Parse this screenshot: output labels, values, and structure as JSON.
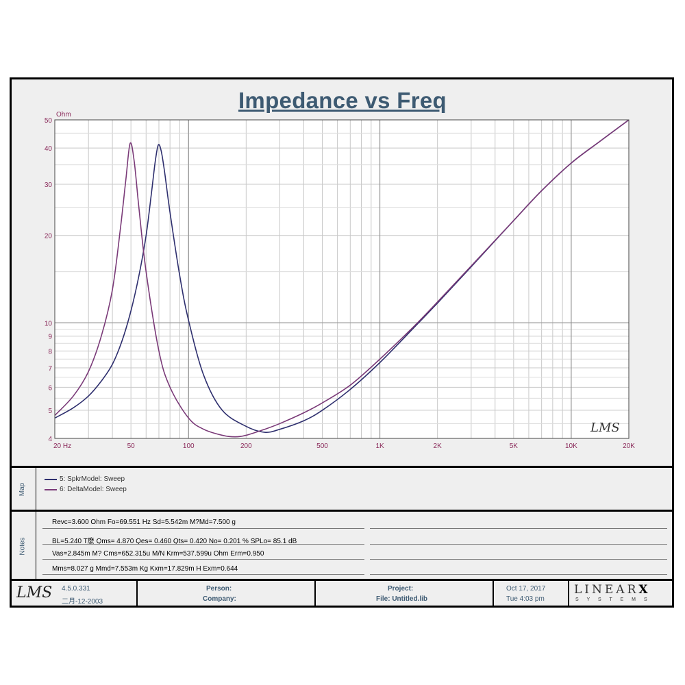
{
  "chart_data": {
    "type": "line",
    "title": "Impedance vs Freq",
    "ylabel": "Ohm",
    "xscale": "log",
    "yscale": "log",
    "xlim": [
      20,
      20000
    ],
    "ylim": [
      4,
      50
    ],
    "grid": true,
    "x_tick_labels": [
      "20 Hz",
      "50",
      "100",
      "200",
      "500",
      "1K",
      "2K",
      "5K",
      "10K",
      "20K"
    ],
    "x_tick_values": [
      20,
      50,
      100,
      200,
      500,
      1000,
      2000,
      5000,
      10000,
      20000
    ],
    "y_tick_labels": [
      "4",
      "5",
      "6",
      "7",
      "8",
      "9",
      "10",
      "20",
      "30",
      "40",
      "50"
    ],
    "y_tick_values": [
      4,
      5,
      6,
      7,
      8,
      9,
      10,
      20,
      30,
      40,
      50
    ],
    "series": [
      {
        "name": "5: SpkrModel: Sweep",
        "color": "#2e2f6e",
        "x": [
          20,
          25,
          30,
          35,
          40,
          45,
          50,
          55,
          60,
          64,
          67,
          69.5,
          72,
          75,
          80,
          90,
          100,
          120,
          150,
          200,
          250,
          300,
          400,
          500,
          700,
          1000,
          1500,
          2000,
          3000,
          5000,
          7000,
          10000,
          14000,
          20000
        ],
        "values": [
          4.7,
          5.1,
          5.6,
          6.3,
          7.2,
          8.7,
          11.0,
          14.5,
          20.0,
          28.0,
          36.0,
          41.0,
          39.0,
          33.0,
          24.0,
          14.5,
          10.2,
          6.6,
          5.0,
          4.4,
          4.2,
          4.3,
          4.6,
          5.0,
          5.9,
          7.3,
          9.6,
          11.7,
          15.6,
          22.5,
          28.5,
          35.5,
          42.0,
          50.0
        ]
      },
      {
        "name": "6: DeltaModel: Sweep",
        "color": "#7a3a78",
        "x": [
          20,
          25,
          30,
          35,
          40,
          44,
          47,
          49.5,
          52,
          55,
          60,
          70,
          80,
          100,
          120,
          150,
          175,
          200,
          250,
          300,
          400,
          500,
          700,
          1000,
          1500,
          2000,
          3000,
          5000,
          7000,
          10000,
          14000,
          20000
        ],
        "values": [
          4.8,
          5.6,
          6.8,
          9.0,
          13.0,
          21.0,
          31.0,
          41.5,
          36.0,
          25.0,
          15.0,
          8.0,
          6.0,
          4.7,
          4.3,
          4.1,
          4.05,
          4.1,
          4.3,
          4.5,
          4.9,
          5.3,
          6.1,
          7.5,
          9.7,
          11.8,
          15.7,
          22.5,
          28.5,
          35.5,
          42.0,
          50.0
        ]
      }
    ]
  },
  "watermark": "LMS",
  "map": {
    "label": "Map",
    "entries": [
      "5: SpkrModel: Sweep",
      "6: DeltaModel: Sweep"
    ]
  },
  "notes": {
    "label": "Notes",
    "lines": [
      "Revc=3.600 Ohm  Fo=69.551 Hz  Sd=5.542m M?Md=7.500 g",
      "BL=5.240 T麽  Qms= 4.870  Qes= 0.460  Qts= 0.420  No= 0.201 %  SPLo= 85.1 dB",
      "Vas=2.845m M?  Cms=652.315u M/N  Krm=537.599u Ohm  Erm=0.950",
      "Mms=8.027 g  Mmd=7.553m Kg  Kxm=17.829m H  Exm=0.644"
    ]
  },
  "footer": {
    "logo": "LMS",
    "version": "4.5.0.331",
    "date": "二月-12-2003",
    "person_label": "Person:",
    "company_label": "Company:",
    "project_label": "Project:",
    "file_label": "File: Untitled.lib",
    "date_right": "Oct 17, 2017",
    "time_right": "Tue  4:03 pm",
    "brand_main": "LINEAR",
    "brand_x": "X",
    "brand_sub": "S Y S T E M S"
  }
}
